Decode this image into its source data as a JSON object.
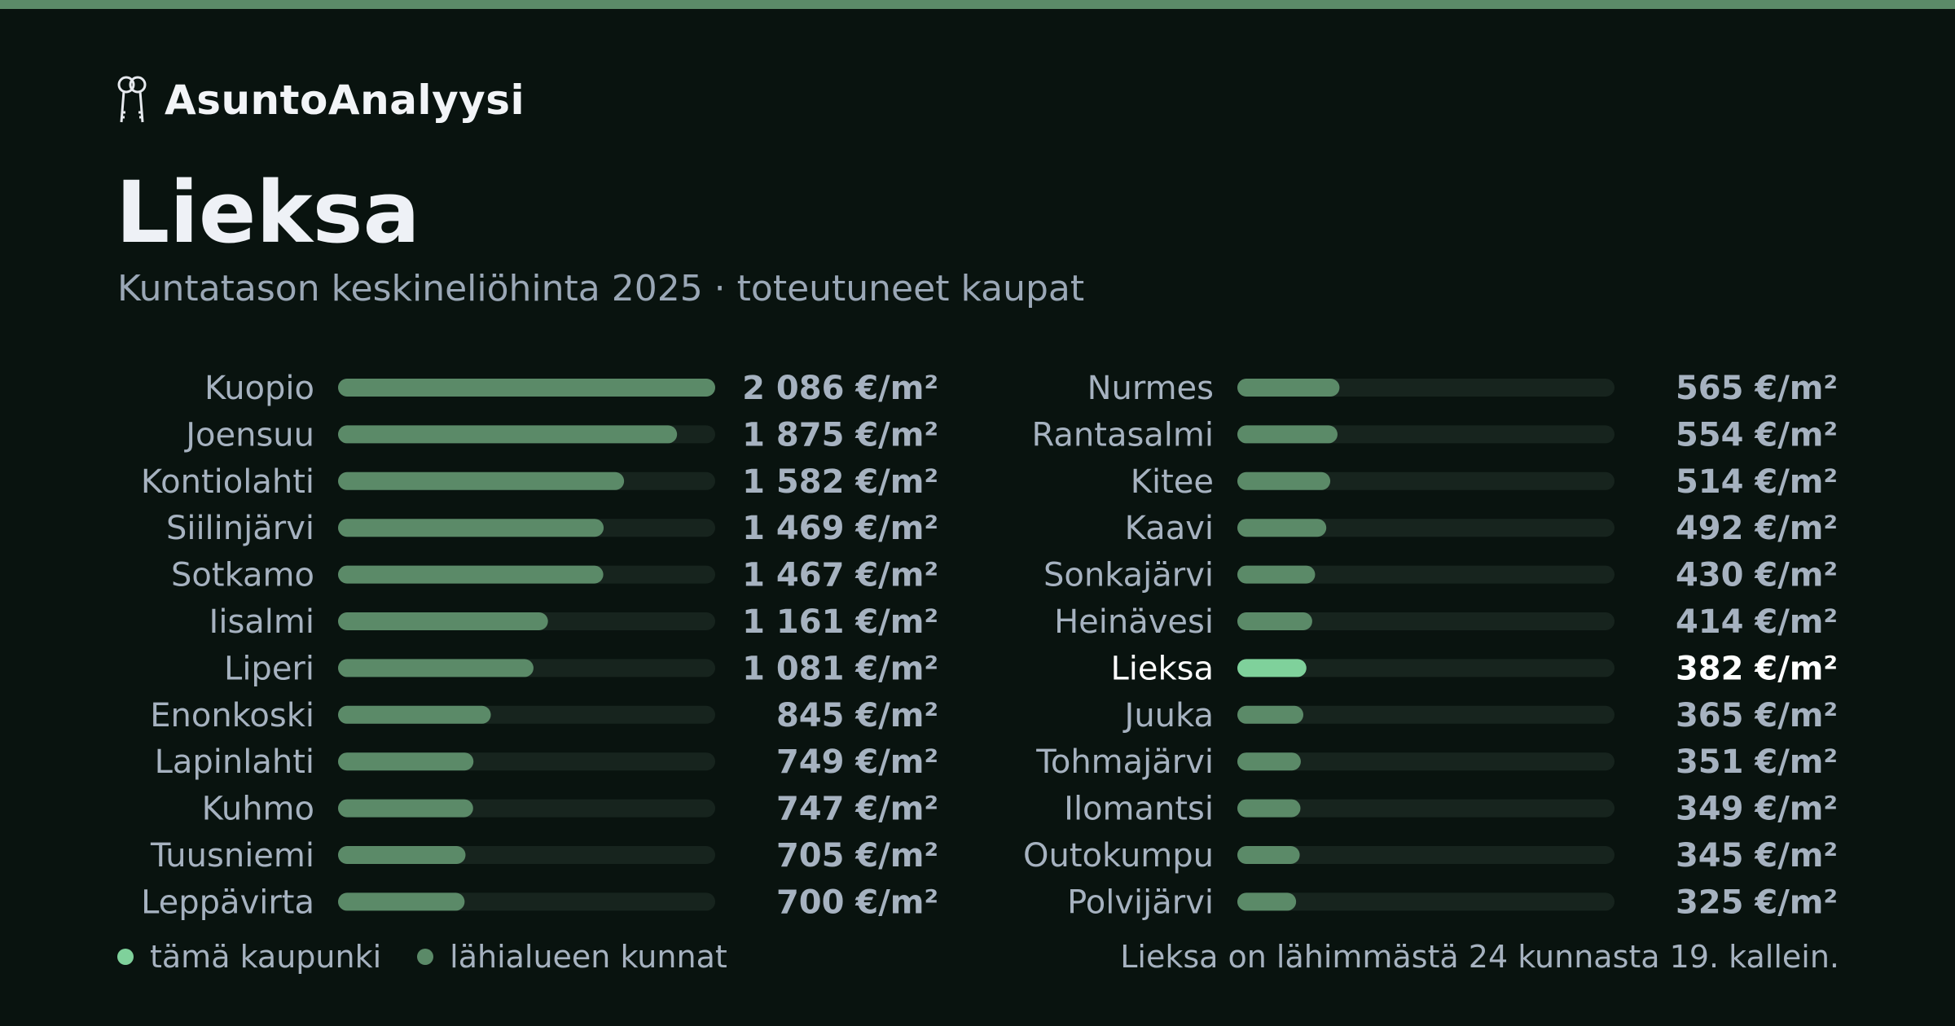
{
  "brand": {
    "name": "AsuntoAnalyysi",
    "icon": "keys-icon"
  },
  "header": {
    "title": "Lieksa",
    "subtitle": "Kuntatason keskineliöhinta 2025 · toteutuneet kaupat"
  },
  "colors": {
    "background": "#09130f",
    "accent_bar": "#5b8a68",
    "bar": "#5b8a68",
    "highlight_bar": "#7fd19b",
    "track": "#17241e"
  },
  "chart_data": {
    "type": "bar",
    "orientation": "horizontal",
    "unit": "€/m²",
    "highlight": "Lieksa",
    "xlim": [
      0,
      2086
    ],
    "categories": [
      "Kuopio",
      "Joensuu",
      "Kontiolahti",
      "Siilinjärvi",
      "Sotkamo",
      "Iisalmi",
      "Liperi",
      "Enonkoski",
      "Lapinlahti",
      "Kuhmo",
      "Tuusniemi",
      "Leppävirta",
      "Nurmes",
      "Rantasalmi",
      "Kitee",
      "Kaavi",
      "Sonkajärvi",
      "Heinävesi",
      "Lieksa",
      "Juuka",
      "Tohmajärvi",
      "Ilomantsi",
      "Outokumpu",
      "Polvijärvi"
    ],
    "values": [
      2086,
      1875,
      1582,
      1469,
      1467,
      1161,
      1081,
      845,
      749,
      747,
      705,
      700,
      565,
      554,
      514,
      492,
      430,
      414,
      382,
      365,
      351,
      349,
      345,
      325
    ],
    "value_labels": [
      "2 086 €/m²",
      "1 875 €/m²",
      "1 582 €/m²",
      "1 469 €/m²",
      "1 467 €/m²",
      "1 161 €/m²",
      "1 081 €/m²",
      "845 €/m²",
      "749 €/m²",
      "747 €/m²",
      "705 €/m²",
      "700 €/m²",
      "565 €/m²",
      "554 €/m²",
      "514 €/m²",
      "492 €/m²",
      "430 €/m²",
      "414 €/m²",
      "382 €/m²",
      "365 €/m²",
      "351 €/m²",
      "349 €/m²",
      "345 €/m²",
      "325 €/m²"
    ],
    "grid": false
  },
  "legend": {
    "this_city": "tämä kaupunki",
    "nearby": "lähialueen kunnat"
  },
  "footnote": "Lieksa on lähimmästä 24 kunnasta 19. kallein."
}
